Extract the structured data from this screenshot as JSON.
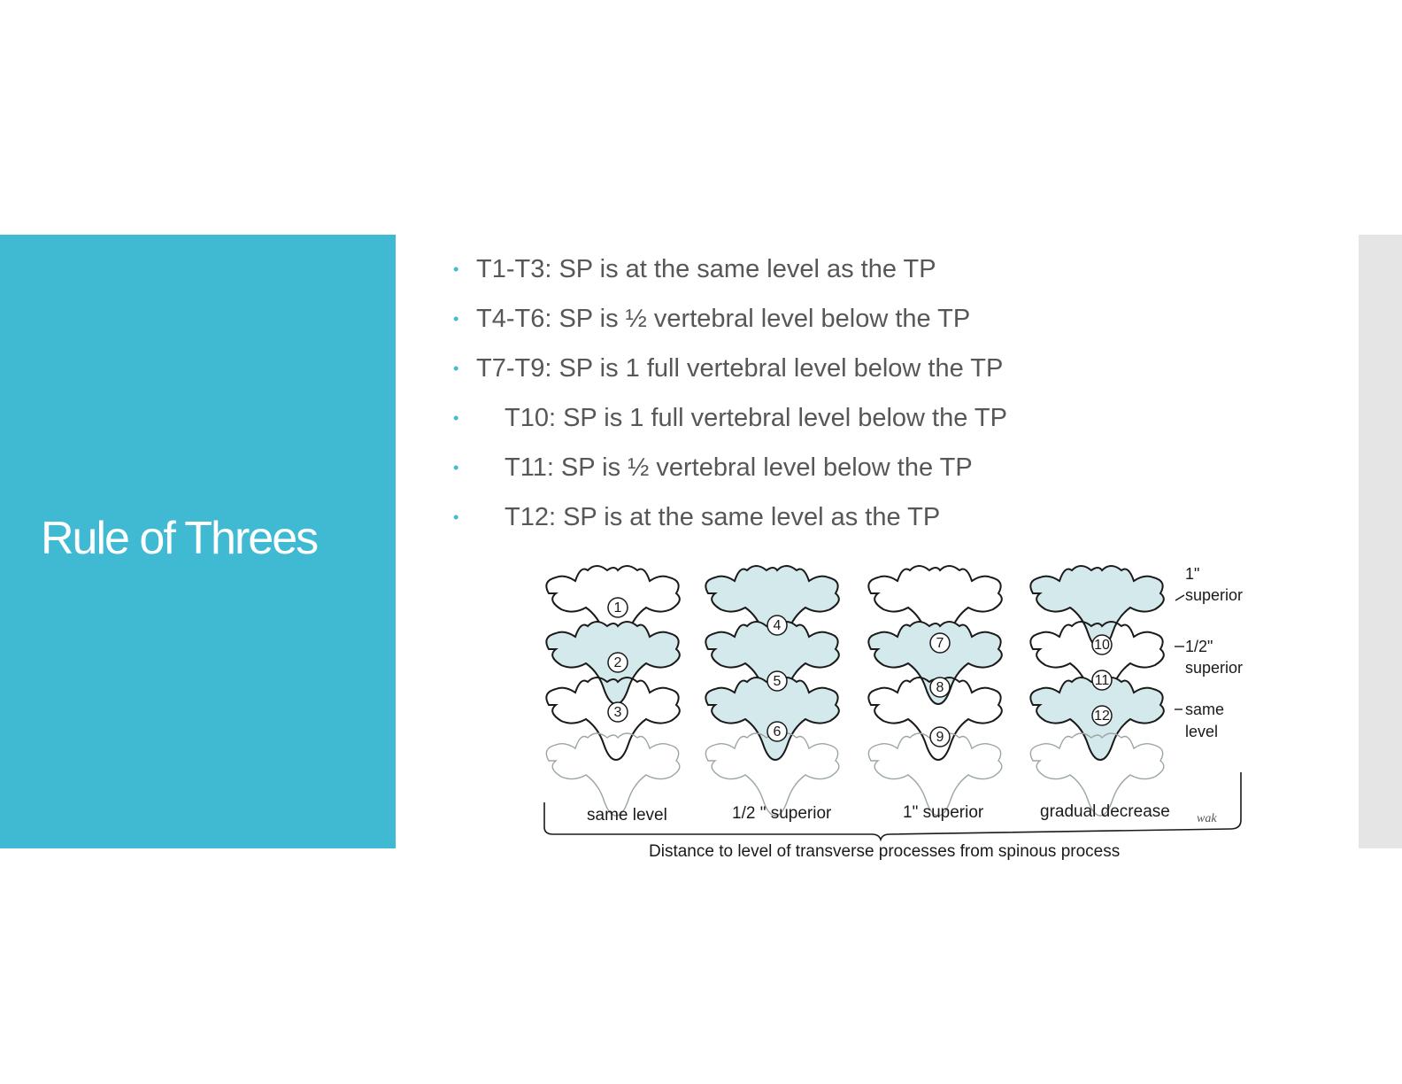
{
  "slide": {
    "title": "Rule of Threes"
  },
  "bullets": [
    {
      "text": "T1-T3:  SP is at the same level as the TP",
      "indent": false
    },
    {
      "text": "T4-T6: SP is ½  vertebral level below the TP",
      "indent": false
    },
    {
      "text": "T7-T9: SP is 1 full vertebral level below the TP",
      "indent": false
    },
    {
      "text": "T10:  SP is 1 full vertebral level below the TP",
      "indent": true
    },
    {
      "text": "T11: SP is ½ vertebral level below the TP",
      "indent": true
    },
    {
      "text": "T12: SP is at the same level as the TP",
      "indent": true
    }
  ],
  "figure": {
    "group_labels": [
      "same level",
      "1/2 \" superior",
      "1\" superior",
      "gradual decrease"
    ],
    "caption": "Distance to level of transverse processes from spinous process",
    "side_labels": {
      "top_1": "1\"",
      "top_2": "superior",
      "mid_1": "1/2\"",
      "mid_2": "superior",
      "low_1": "same",
      "low_2": "level"
    },
    "signature": "wak",
    "vertebra_numbers": [
      "1",
      "2",
      "3",
      "4",
      "5",
      "6",
      "7",
      "8",
      "9",
      "10",
      "11",
      "12"
    ],
    "colors": {
      "fill": "#d3e9ec",
      "stroke": "#1a1a1a",
      "ghost": "#9aa5a6"
    }
  },
  "theme": {
    "accent": "#40b9d3",
    "text": "#575757",
    "strip": "#e5e5e5"
  }
}
